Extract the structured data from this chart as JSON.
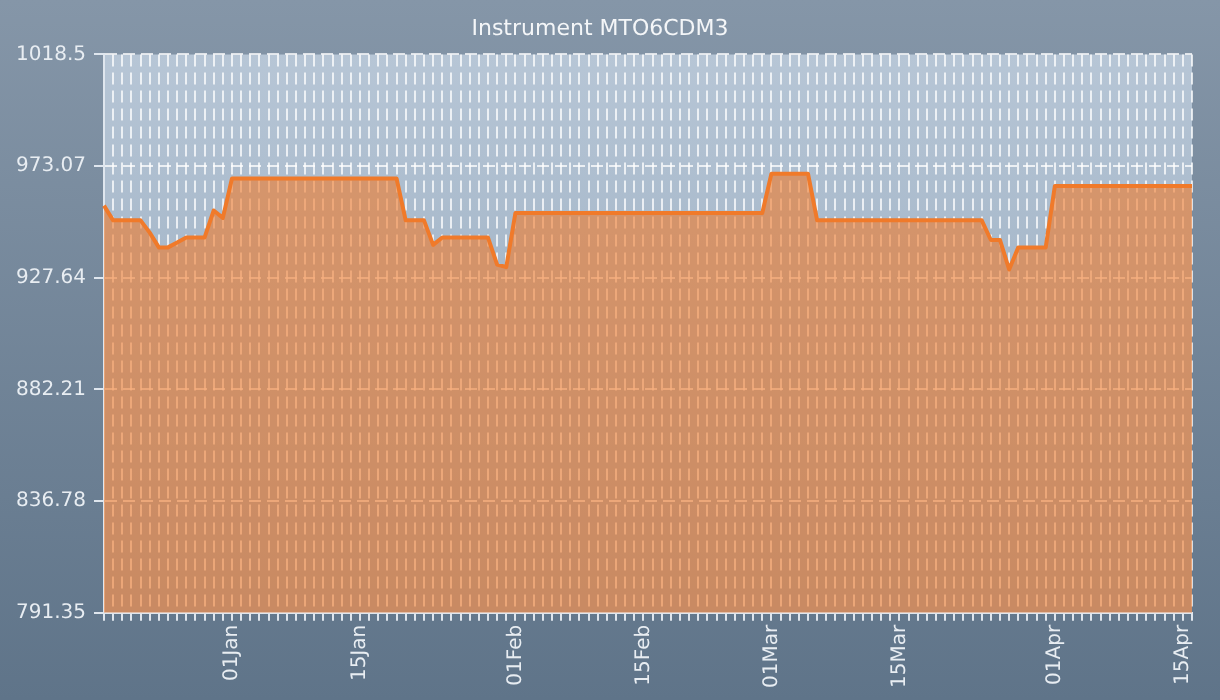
{
  "chart_data": {
    "type": "area",
    "title": "Instrument MTO6CDM3",
    "categories": [
      null,
      null,
      null,
      null,
      null,
      null,
      null,
      null,
      null,
      null,
      null,
      null,
      null,
      null,
      "01Jan",
      null,
      null,
      null,
      null,
      null,
      null,
      null,
      null,
      null,
      null,
      null,
      null,
      null,
      "15Jan",
      null,
      null,
      null,
      null,
      null,
      null,
      null,
      null,
      null,
      null,
      null,
      null,
      null,
      null,
      null,
      null,
      "01Feb",
      null,
      null,
      null,
      null,
      null,
      null,
      null,
      null,
      null,
      null,
      null,
      null,
      null,
      "15Feb",
      null,
      null,
      null,
      null,
      null,
      null,
      null,
      null,
      null,
      null,
      null,
      null,
      null,
      "01Mar",
      null,
      null,
      null,
      null,
      null,
      null,
      null,
      null,
      null,
      null,
      null,
      null,
      null,
      "15Mar",
      null,
      null,
      null,
      null,
      null,
      null,
      null,
      null,
      null,
      null,
      null,
      null,
      null,
      null,
      null,
      null,
      "01Apr",
      null,
      null,
      null,
      null,
      null,
      null,
      null,
      null,
      null,
      null,
      null,
      null,
      null,
      "15Apr",
      null
    ],
    "series": [
      {
        "color": "#f07a2a",
        "values": [
          957,
          951,
          951,
          951,
          951,
          946,
          940,
          940,
          942,
          944,
          944,
          944,
          955,
          952,
          968,
          968,
          968,
          968,
          968,
          968,
          968,
          968,
          968,
          968,
          968,
          968,
          968,
          968,
          968,
          968,
          968,
          968,
          968,
          951,
          951,
          951,
          941,
          944,
          944,
          944,
          944,
          944,
          944,
          933,
          932,
          954,
          954,
          954,
          954,
          954,
          954,
          954,
          954,
          954,
          954,
          954,
          954,
          954,
          954,
          954,
          954,
          954,
          954,
          954,
          954,
          954,
          954,
          954,
          954,
          954,
          954,
          954,
          954,
          970,
          970,
          970,
          970,
          970,
          951,
          951,
          951,
          951,
          951,
          951,
          951,
          951,
          951,
          951,
          951,
          951,
          951,
          951,
          951,
          951,
          951,
          951,
          951,
          943,
          943,
          931,
          940,
          940,
          940,
          940,
          965,
          965,
          965,
          965,
          965,
          965,
          965,
          965,
          965,
          965,
          965,
          965,
          965,
          965,
          965,
          965
        ]
      }
    ],
    "ylim": [
      791.35,
      1018.5
    ],
    "yticks": [
      791.35,
      836.78,
      882.21,
      927.64,
      973.07,
      1018.5
    ],
    "grid": true
  }
}
